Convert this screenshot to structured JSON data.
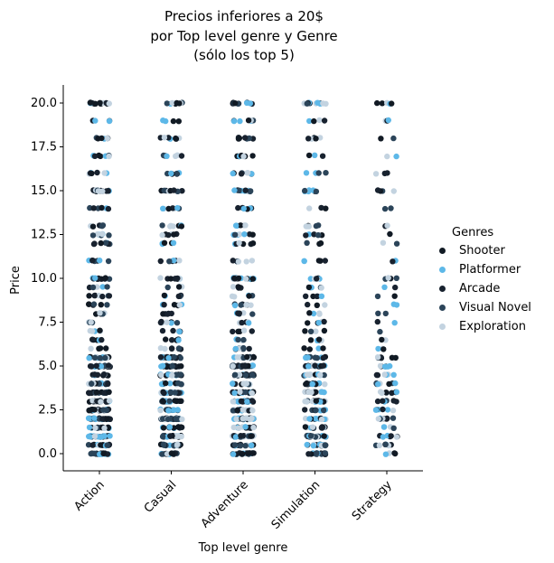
{
  "chart_data": {
    "type": "scatter",
    "title_lines": [
      "Precios inferiores a 20$",
      "por Top level genre y Genre",
      "(sólo los top 5)"
    ],
    "xlabel": "Top level genre",
    "ylabel": "Price",
    "categories": [
      "Action",
      "Casual",
      "Adventure",
      "Simulation",
      "Strategy"
    ],
    "ylim": [
      -0.8,
      21
    ],
    "yticks": [
      "0.0",
      "2.5",
      "5.0",
      "7.5",
      "10.0",
      "12.5",
      "15.0",
      "17.5",
      "20.0"
    ],
    "legend": {
      "title": "Genres",
      "placement": "right",
      "entries": [
        {
          "label": "Shooter",
          "color": "#111a24"
        },
        {
          "label": "Platformer",
          "color": "#5db8e8"
        },
        {
          "label": "Arcade",
          "color": "#18222f"
        },
        {
          "label": "Visual Novel",
          "color": "#2b4459"
        },
        {
          "label": "Exploration",
          "color": "#c3d3e0"
        }
      ]
    },
    "price_levels": [
      0.0,
      0.49,
      0.99,
      1.49,
      1.99,
      2.49,
      2.99,
      3.49,
      3.99,
      4.49,
      4.99,
      5.49,
      5.99,
      6.49,
      6.99,
      7.49,
      7.99,
      8.49,
      8.99,
      9.49,
      9.99,
      10.99,
      11.99,
      12.49,
      12.99,
      13.99,
      14.99,
      15.99,
      16.99,
      17.99,
      18.99,
      19.99
    ],
    "category_density": {
      "Action": 1.0,
      "Casual": 0.9,
      "Adventure": 1.0,
      "Simulation": 0.7,
      "Strategy": 0.35
    }
  }
}
